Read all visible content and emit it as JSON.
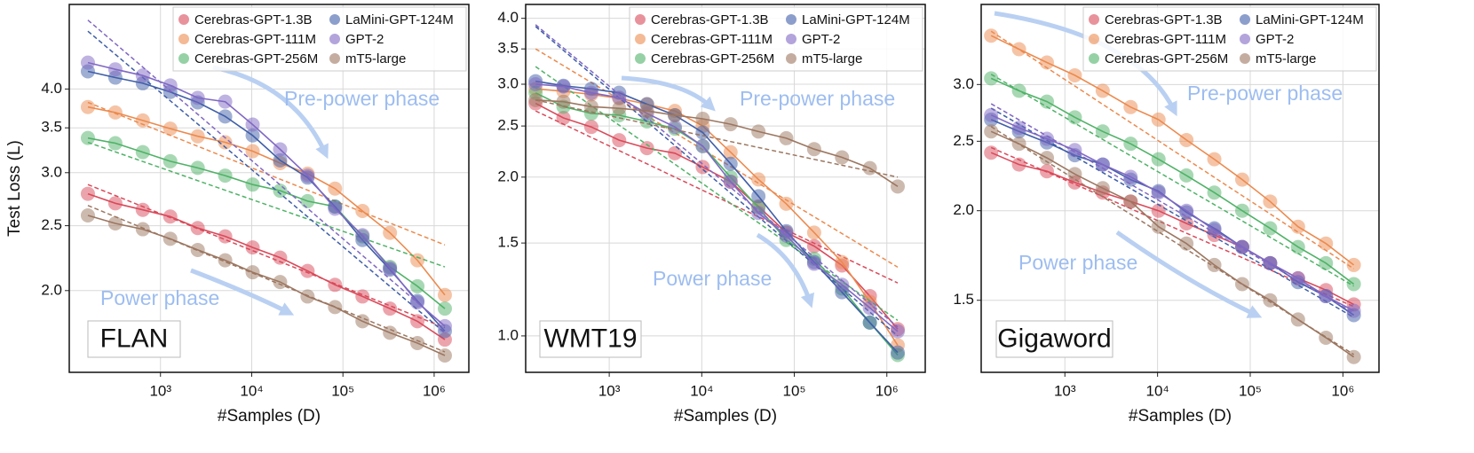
{
  "chart_data": [
    {
      "type": "scatter",
      "dataset": "FLAN",
      "annotations": [
        "Pre-power phase",
        "Power phase"
      ],
      "x_label": "#Samples (D)",
      "y_label": "Test Loss (L)",
      "xscale": "log",
      "yscale": "log",
      "grid": true,
      "legend": "top-right",
      "xlim": [
        100,
        2400000
      ],
      "ylim": [
        1.51,
        5.35
      ],
      "xticks": [
        {
          "value": 1000,
          "label": "10³"
        },
        {
          "value": 10000,
          "label": "10⁴"
        },
        {
          "value": 100000,
          "label": "10⁵"
        },
        {
          "value": 1000000,
          "label": "10⁶"
        }
      ],
      "yticks": [
        {
          "value": 2,
          "label": "2.0"
        },
        2.5,
        {
          "value": 3,
          "label": "3.0"
        },
        3.5,
        {
          "value": 4,
          "label": "4.0"
        }
      ],
      "x": [
        160,
        320,
        640,
        1280,
        2560,
        5120,
        10240,
        20480,
        40960,
        81920,
        163840,
        327680,
        655360,
        1310720
      ],
      "series": [
        {
          "name": "Cerebras-GPT-1.3B",
          "color": "#d94a5a",
          "values": [
            2.79,
            2.7,
            2.64,
            2.58,
            2.48,
            2.41,
            2.32,
            2.24,
            2.14,
            2.04,
            1.96,
            1.88,
            1.8,
            1.69
          ],
          "fit": [
            2.88,
            1.76
          ]
        },
        {
          "name": "Cerebras-GPT-111M",
          "color": "#ec8a4e",
          "values": [
            3.76,
            3.69,
            3.59,
            3.49,
            3.4,
            3.33,
            3.23,
            3.1,
            2.99,
            2.84,
            2.63,
            2.44,
            2.22,
            1.97
          ],
          "fit": [
            3.82,
            2.34
          ]
        },
        {
          "name": "Cerebras-GPT-256M",
          "color": "#4fb267",
          "values": [
            3.38,
            3.32,
            3.22,
            3.12,
            3.05,
            2.97,
            2.88,
            2.82,
            2.72,
            2.67,
            2.41,
            2.17,
            2.03,
            1.88
          ],
          "fit": [
            3.33,
            2.17
          ]
        },
        {
          "name": "LaMini-GPT-124M",
          "color": "#3f5ea8",
          "values": [
            4.25,
            4.16,
            4.08,
            3.96,
            3.82,
            3.64,
            3.41,
            3.13,
            2.95,
            2.67,
            2.38,
            2.15,
            1.93,
            1.74
          ],
          "fit": [
            4.88,
            1.73
          ]
        },
        {
          "name": "GPT-2",
          "color": "#8068c4",
          "values": [
            4.38,
            4.28,
            4.19,
            4.05,
            3.88,
            3.83,
            3.54,
            3.25,
            2.97,
            2.65,
            2.42,
            2.16,
            1.92,
            1.77
          ],
          "fit": [
            5.07,
            1.77
          ]
        },
        {
          "name": "mT5-large",
          "color": "#9c7660",
          "values": [
            2.59,
            2.52,
            2.47,
            2.39,
            2.3,
            2.22,
            2.13,
            2.06,
            1.96,
            1.89,
            1.8,
            1.73,
            1.67,
            1.6
          ],
          "fit": [
            2.68,
            1.62
          ]
        }
      ]
    },
    {
      "type": "scatter",
      "dataset": "WMT19",
      "annotations": [
        "Pre-power phase",
        "Power phase"
      ],
      "x_label": "#Samples (D)",
      "xscale": "log",
      "yscale": "log",
      "grid": true,
      "legend": "top-right",
      "xlim": [
        125,
        2600000
      ],
      "ylim": [
        0.853,
        4.25
      ],
      "xticks": [
        {
          "value": 1000,
          "label": "10³"
        },
        {
          "value": 10000,
          "label": "10⁴"
        },
        {
          "value": 100000,
          "label": "10⁵"
        },
        {
          "value": 1000000,
          "label": "10⁶"
        }
      ],
      "yticks": [
        {
          "value": 1,
          "label": "1.0"
        },
        1.5,
        {
          "value": 2,
          "label": "2.0"
        },
        2.5,
        {
          "value": 3,
          "label": "3.0"
        },
        3.5,
        {
          "value": 4,
          "label": "4.0"
        }
      ],
      "x": [
        160,
        320,
        640,
        1280,
        2560,
        5120,
        10240,
        20480,
        40960,
        81920,
        163840,
        327680,
        655360,
        1310720
      ],
      "series": [
        {
          "name": "Cerebras-GPT-1.3B",
          "color": "#d94a5a",
          "values": [
            2.76,
            2.59,
            2.49,
            2.35,
            2.27,
            2.22,
            2.09,
            1.96,
            1.76,
            1.57,
            1.48,
            1.36,
            1.19,
            1.03
          ],
          "fit": [
            2.67,
            1.26
          ]
        },
        {
          "name": "Cerebras-GPT-111M",
          "color": "#ec8a4e",
          "values": [
            2.94,
            2.91,
            2.87,
            2.82,
            2.75,
            2.67,
            2.5,
            2.23,
            1.98,
            1.78,
            1.57,
            1.38,
            1.16,
            0.96
          ],
          "fit": [
            3.5,
            1.35
          ]
        },
        {
          "name": "Cerebras-GPT-256M",
          "color": "#4fb267",
          "values": [
            2.89,
            2.72,
            2.64,
            2.62,
            2.55,
            2.47,
            2.29,
            2.0,
            1.75,
            1.52,
            1.4,
            1.23,
            1.06,
            0.92
          ],
          "fit": [
            3.24,
            1.07
          ]
        },
        {
          "name": "LaMini-GPT-124M",
          "color": "#3f5ea8",
          "values": [
            3.04,
            2.98,
            2.94,
            2.89,
            2.75,
            2.62,
            2.43,
            2.12,
            1.84,
            1.58,
            1.38,
            1.21,
            1.06,
            0.93
          ],
          "fit": [
            3.86,
            1.0
          ]
        },
        {
          "name": "GPT-2",
          "color": "#8068c4",
          "values": [
            3.0,
            2.97,
            2.89,
            2.83,
            2.64,
            2.49,
            2.29,
            1.96,
            1.71,
            1.55,
            1.37,
            1.25,
            1.13,
            1.02
          ],
          "fit": [
            3.89,
            1.04
          ]
        },
        {
          "name": "mT5-large",
          "color": "#9c7660",
          "values": [
            2.8,
            2.78,
            2.72,
            2.7,
            2.67,
            2.62,
            2.58,
            2.52,
            2.44,
            2.37,
            2.26,
            2.18,
            2.08,
            1.92
          ],
          "fit": [
            2.8,
            2.0
          ]
        }
      ]
    },
    {
      "type": "scatter",
      "dataset": "Gigaword",
      "annotations": [
        "Pre-power phase",
        "Power phase"
      ],
      "x_label": "#Samples (D)",
      "xscale": "log",
      "yscale": "log",
      "grid": true,
      "legend": "top-right",
      "xlim": [
        125,
        2450000
      ],
      "ylim": [
        1.19,
        3.88
      ],
      "xticks": [
        {
          "value": 1000,
          "label": "10³"
        },
        {
          "value": 10000,
          "label": "10⁴"
        },
        {
          "value": 100000,
          "label": "10⁵"
        },
        {
          "value": 1000000,
          "label": "10⁶"
        }
      ],
      "yticks": [
        1.5,
        {
          "value": 2,
          "label": "2.0"
        },
        2.5,
        {
          "value": 3,
          "label": "3.0"
        }
      ],
      "x": [
        160,
        320,
        640,
        1280,
        2560,
        5120,
        10240,
        20480,
        40960,
        81920,
        163840,
        327680,
        655360,
        1310720
      ],
      "series": [
        {
          "name": "Cerebras-GPT-1.3B",
          "color": "#d94a5a",
          "values": [
            2.41,
            2.32,
            2.27,
            2.19,
            2.12,
            2.06,
            2.0,
            1.92,
            1.85,
            1.78,
            1.69,
            1.61,
            1.55,
            1.48
          ],
          "fit": [
            2.45,
            1.47
          ]
        },
        {
          "name": "Cerebras-GPT-111M",
          "color": "#ec8a4e",
          "values": [
            3.51,
            3.36,
            3.22,
            3.09,
            2.94,
            2.79,
            2.68,
            2.51,
            2.36,
            2.21,
            2.06,
            1.9,
            1.8,
            1.68
          ],
          "fit": [
            3.56,
            1.66
          ]
        },
        {
          "name": "Cerebras-GPT-256M",
          "color": "#4fb267",
          "values": [
            3.06,
            2.94,
            2.84,
            2.7,
            2.58,
            2.48,
            2.36,
            2.24,
            2.12,
            2.0,
            1.89,
            1.78,
            1.69,
            1.58
          ],
          "fit": [
            3.1,
            1.57
          ]
        },
        {
          "name": "LaMini-GPT-124M",
          "color": "#3f5ea8",
          "values": [
            2.68,
            2.58,
            2.49,
            2.39,
            2.32,
            2.21,
            2.13,
            1.99,
            1.89,
            1.78,
            1.69,
            1.59,
            1.52,
            1.43
          ],
          "fit": [
            2.78,
            1.42
          ]
        },
        {
          "name": "GPT-2",
          "color": "#8068c4",
          "values": [
            2.72,
            2.61,
            2.52,
            2.43,
            2.32,
            2.23,
            2.12,
            2.0,
            1.88,
            1.78,
            1.69,
            1.61,
            1.52,
            1.45
          ],
          "fit": [
            2.82,
            1.44
          ]
        },
        {
          "name": "mT5-large",
          "color": "#9c7660",
          "values": [
            2.58,
            2.48,
            2.37,
            2.25,
            2.15,
            2.06,
            1.9,
            1.8,
            1.68,
            1.58,
            1.5,
            1.41,
            1.33,
            1.25
          ],
          "fit": [
            2.62,
            1.26
          ]
        }
      ]
    }
  ]
}
